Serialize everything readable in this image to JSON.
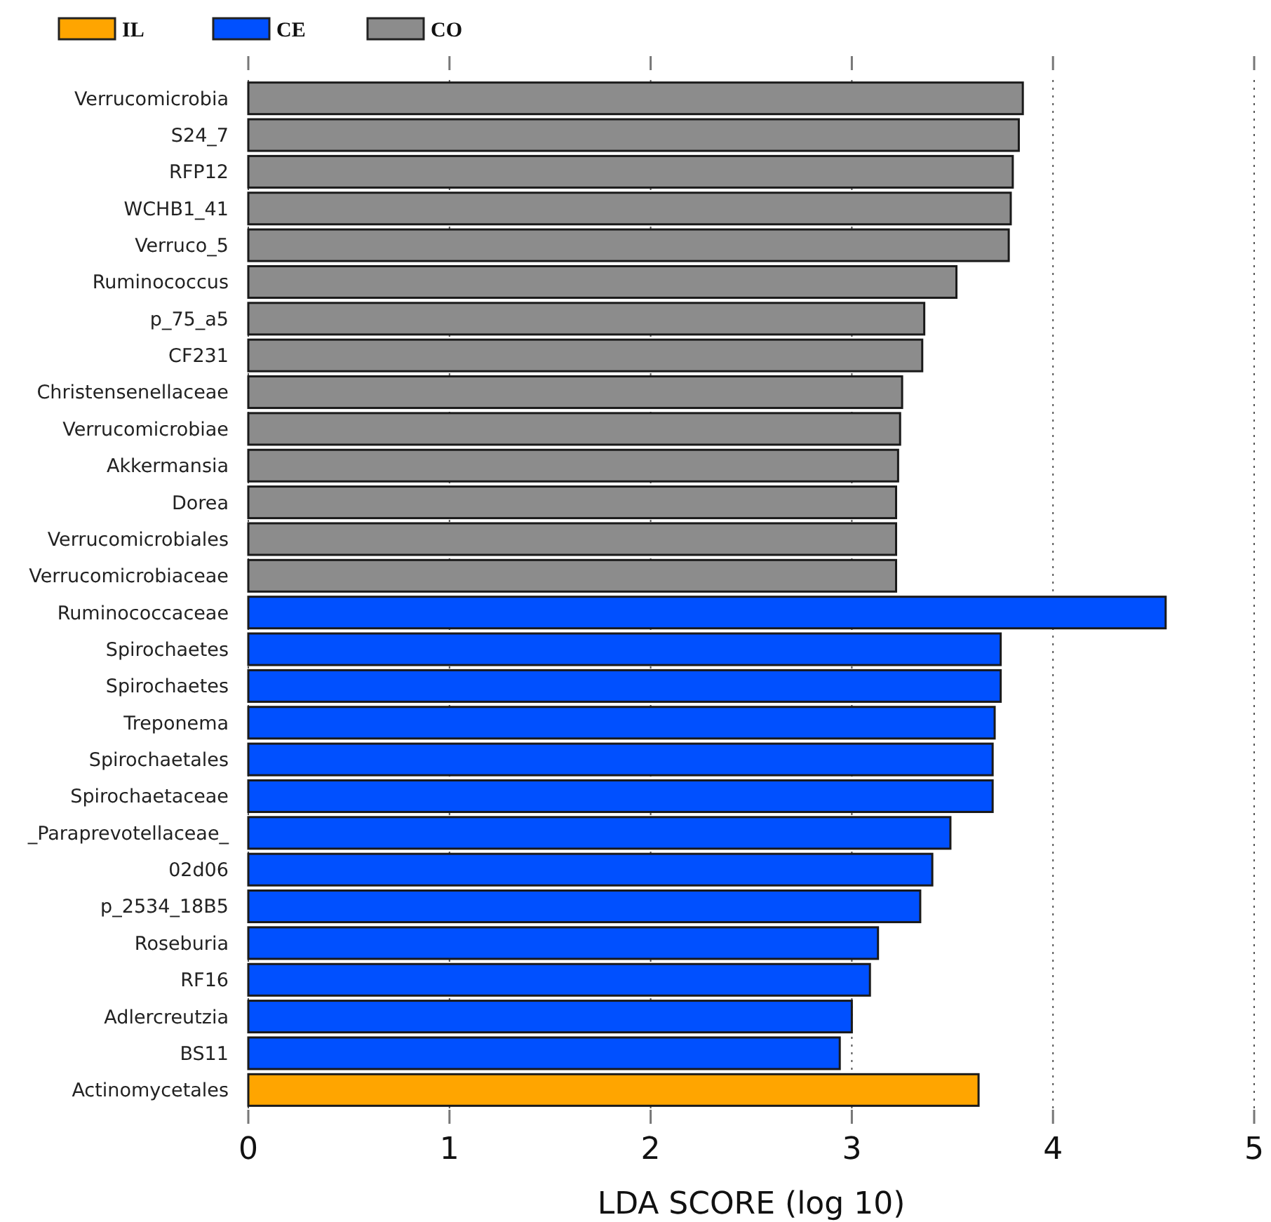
{
  "chart_data": {
    "type": "bar",
    "orientation": "horizontal",
    "xlabel": "LDA SCORE (log 10)",
    "categories": [
      "Verrucomicrobia",
      "S24_7",
      "RFP12",
      "WCHB1_41",
      "Verruco_5",
      "Ruminococcus",
      "p_75_a5",
      "CF231",
      "Christensenellaceae",
      "Verrucomicrobiae",
      "Akkermansia",
      "Dorea",
      "Verrucomicrobiales",
      "Verrucomicrobiaceae",
      "Ruminococcaceae",
      "Spirochaetes",
      "Spirochaetes",
      "Treponema",
      "Spirochaetales",
      "Spirochaetaceae",
      "_Paraprevotellaceae_",
      "02d06",
      "p_2534_18B5",
      "Roseburia",
      "RF16",
      "Adlercreutzia",
      "BS11",
      "Actinomycetales"
    ],
    "series": [
      {
        "name": "IL",
        "color": "#ffa500",
        "values": [
          null,
          null,
          null,
          null,
          null,
          null,
          null,
          null,
          null,
          null,
          null,
          null,
          null,
          null,
          null,
          null,
          null,
          null,
          null,
          null,
          null,
          null,
          null,
          null,
          null,
          null,
          null,
          3.63
        ]
      },
      {
        "name": "CE",
        "color": "#0050ff",
        "values": [
          null,
          null,
          null,
          null,
          null,
          null,
          null,
          null,
          null,
          null,
          null,
          null,
          null,
          null,
          4.56,
          3.74,
          3.74,
          3.71,
          3.7,
          3.7,
          3.49,
          3.4,
          3.34,
          3.13,
          3.09,
          3.0,
          2.94,
          null
        ]
      },
      {
        "name": "CO",
        "color": "#8c8c8c",
        "values": [
          3.85,
          3.83,
          3.8,
          3.79,
          3.78,
          3.52,
          3.36,
          3.35,
          3.25,
          3.24,
          3.23,
          3.22,
          3.22,
          3.22,
          null,
          null,
          null,
          null,
          null,
          null,
          null,
          null,
          null,
          null,
          null,
          null,
          null,
          null
        ]
      }
    ],
    "xlim": [
      0,
      5
    ],
    "xticks": [
      0,
      1,
      2,
      3,
      4,
      5
    ],
    "grid": "x",
    "legend": "top left"
  }
}
